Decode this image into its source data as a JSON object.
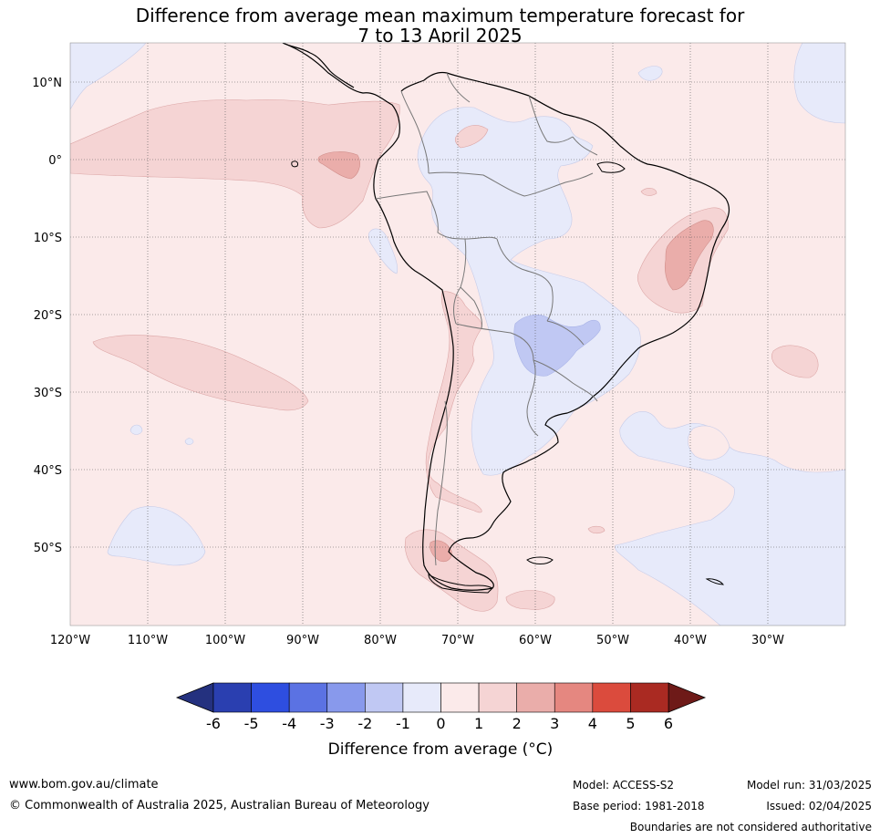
{
  "title": {
    "line1": "Difference from average mean maximum temperature forecast for",
    "line2": "7 to 13 April 2025"
  },
  "map": {
    "lat_labels": [
      "10°N",
      "0°",
      "10°S",
      "20°S",
      "30°S",
      "40°S",
      "50°S"
    ],
    "lon_labels": [
      "120°W",
      "110°W",
      "100°W",
      "90°W",
      "80°W",
      "70°W",
      "60°W",
      "50°W",
      "40°W",
      "30°W"
    ]
  },
  "colorbar": {
    "tick_labels": [
      "-6",
      "-5",
      "-4",
      "-3",
      "-2",
      "-1",
      "0",
      "1",
      "2",
      "3",
      "4",
      "5",
      "6"
    ],
    "colors": [
      "#24317f",
      "#2a3fb0",
      "#2e4ee0",
      "#5b72e3",
      "#8899ec",
      "#c0c8f3",
      "#e7eafa",
      "#fbeaea",
      "#f5d4d4",
      "#eaadaa",
      "#e58780",
      "#db4b3d",
      "#aa2a22",
      "#6e1a18"
    ],
    "label": "Difference from average (°C)"
  },
  "footer": {
    "website": "www.bom.gov.au/climate",
    "copyright": "© Commonwealth of Australia 2025, Australian Bureau of Meteorology",
    "model": "Model: ACCESS-S2",
    "base_period": "Base period: 1981-2018",
    "model_run": "Model run: 31/03/2025",
    "issued": "Issued: 02/04/2025",
    "disclaimer": "Boundaries are not considered authoritative"
  }
}
